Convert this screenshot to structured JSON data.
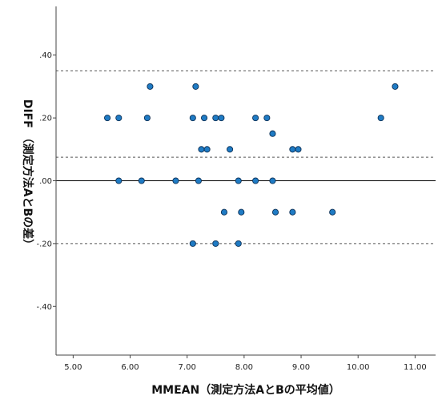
{
  "chart_data": {
    "type": "scatter",
    "xlabel": "MMEAN（測定方法AとBの平均値）",
    "ylabel": "DIFF （測定方法AとBの差）",
    "xlim": [
      4.7,
      11.36
    ],
    "ylim": [
      -0.555,
      0.555
    ],
    "x_ticks": [
      5,
      6,
      7,
      8,
      9,
      10,
      11
    ],
    "x_tick_labels": [
      "5.00",
      "6.00",
      "7.00",
      "8.00",
      "9.00",
      "10.00",
      "11.00"
    ],
    "y_ticks": [
      0.4,
      0.2,
      0.0,
      -0.2,
      -0.4
    ],
    "y_tick_labels": [
      ".40",
      ".20",
      ".00",
      "-.20",
      "-.40"
    ],
    "reference_lines": [
      {
        "y": 0.0,
        "style": "solid"
      },
      {
        "y": 0.35,
        "style": "dashed"
      },
      {
        "y": 0.075,
        "style": "dashed"
      },
      {
        "y": -0.2,
        "style": "dashed"
      }
    ],
    "marker_color": "#1f7bc4",
    "marker_edge_color": "#0b2f55",
    "points": [
      {
        "x": 5.6,
        "y": 0.2
      },
      {
        "x": 5.8,
        "y": 0.2
      },
      {
        "x": 6.3,
        "y": 0.2
      },
      {
        "x": 6.35,
        "y": 0.3
      },
      {
        "x": 7.1,
        "y": 0.2
      },
      {
        "x": 7.15,
        "y": 0.3
      },
      {
        "x": 7.3,
        "y": 0.2
      },
      {
        "x": 7.5,
        "y": 0.2
      },
      {
        "x": 7.6,
        "y": 0.2
      },
      {
        "x": 8.2,
        "y": 0.2
      },
      {
        "x": 8.4,
        "y": 0.2
      },
      {
        "x": 10.4,
        "y": 0.2
      },
      {
        "x": 10.65,
        "y": 0.3
      },
      {
        "x": 8.5,
        "y": 0.15
      },
      {
        "x": 7.25,
        "y": 0.1
      },
      {
        "x": 7.35,
        "y": 0.1
      },
      {
        "x": 7.75,
        "y": 0.1
      },
      {
        "x": 8.85,
        "y": 0.1
      },
      {
        "x": 8.95,
        "y": 0.1
      },
      {
        "x": 5.8,
        "y": 0.0
      },
      {
        "x": 6.2,
        "y": 0.0
      },
      {
        "x": 6.8,
        "y": 0.0
      },
      {
        "x": 7.2,
        "y": 0.0
      },
      {
        "x": 7.9,
        "y": 0.0
      },
      {
        "x": 8.2,
        "y": 0.0
      },
      {
        "x": 8.5,
        "y": 0.0
      },
      {
        "x": 7.65,
        "y": -0.1
      },
      {
        "x": 7.95,
        "y": -0.1
      },
      {
        "x": 8.55,
        "y": -0.1
      },
      {
        "x": 8.85,
        "y": -0.1
      },
      {
        "x": 9.55,
        "y": -0.1
      },
      {
        "x": 7.1,
        "y": -0.2
      },
      {
        "x": 7.5,
        "y": -0.2
      },
      {
        "x": 7.9,
        "y": -0.2
      }
    ]
  }
}
